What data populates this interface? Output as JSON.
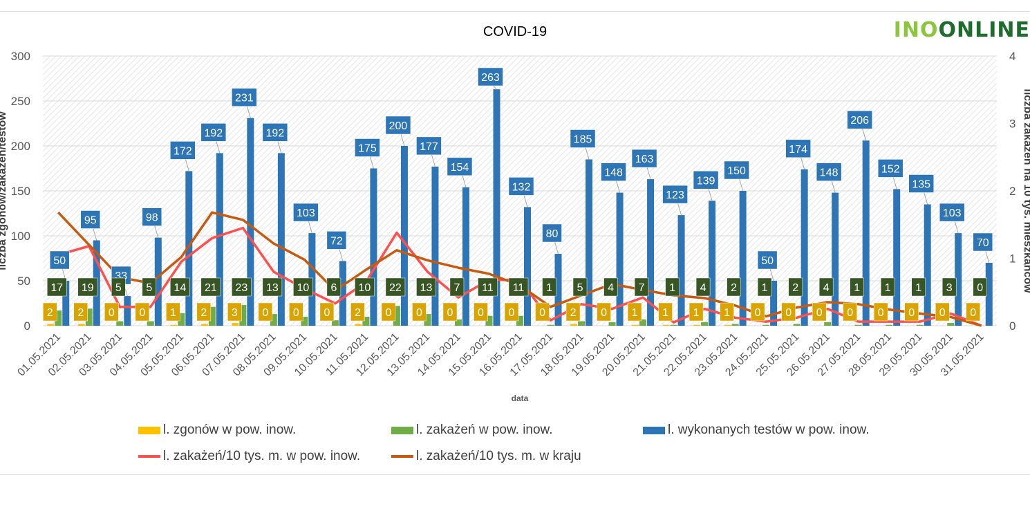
{
  "title": "COVID-19",
  "logo": {
    "part1": "INO",
    "part2": "ONLINE"
  },
  "chart_data": {
    "type": "bar",
    "title": "COVID-19",
    "xlabel": "data",
    "ylabel": "liczba zgonów/zakażeń/testów",
    "y2label": "liczba zakażeń na 10 tys. mieszkańców",
    "ylim": [
      0,
      300
    ],
    "y2lim": [
      0,
      4
    ],
    "yticks": [
      "0",
      "50",
      "100",
      "150",
      "200",
      "250",
      "300"
    ],
    "y2ticks": [
      "0",
      "1",
      "2",
      "3",
      "4"
    ],
    "categories": [
      "01.05.2021",
      "02.05.2021",
      "03.05.2021",
      "04.05.2021",
      "05.05.2021",
      "06.05.2021",
      "07.05.2021",
      "08.05.2021",
      "09.05.2021",
      "10.05.2021",
      "11.05.2021",
      "12.05.2021",
      "13.05.2021",
      "14.05.2021",
      "15.05.2021",
      "16.05.2021",
      "17.05.2021",
      "18.05.2021",
      "19.05.2021",
      "20.05.2021",
      "21.05.2021",
      "22.05.2021",
      "23.05.2021",
      "24.05.2021",
      "25.05.2021",
      "26.05.2021",
      "27.05.2021",
      "28.05.2021",
      "29.05.2021",
      "30.05.2021",
      "31.05.2021"
    ],
    "series": [
      {
        "name": "l. zgonów w pow. inow.",
        "kind": "bar",
        "axis": "left",
        "color": "#ffc000",
        "label_bg": "#d9a400",
        "values": [
          2,
          2,
          0,
          0,
          1,
          2,
          3,
          0,
          0,
          0,
          2,
          0,
          0,
          0,
          0,
          0,
          0,
          2,
          0,
          1,
          1,
          1,
          1,
          0,
          0,
          0,
          0,
          0,
          0,
          0,
          0
        ]
      },
      {
        "name": "l. zakażeń w pow. inow.",
        "kind": "bar",
        "axis": "left",
        "color": "#70ad47",
        "label_bg": "#375623",
        "values": [
          17,
          19,
          5,
          5,
          14,
          21,
          23,
          13,
          10,
          6,
          10,
          22,
          13,
          7,
          11,
          11,
          1,
          5,
          4,
          7,
          1,
          4,
          2,
          1,
          2,
          4,
          1,
          1,
          1,
          3,
          0
        ]
      },
      {
        "name": "l. wykonanych testów w pow. inow.",
        "kind": "bar",
        "axis": "left",
        "color": "#2e75b6",
        "label_bg": "#2e75b6",
        "values": [
          50,
          95,
          33,
          98,
          172,
          192,
          231,
          192,
          103,
          72,
          175,
          200,
          177,
          154,
          263,
          132,
          80,
          185,
          148,
          163,
          123,
          139,
          150,
          50,
          174,
          148,
          206,
          152,
          135,
          103,
          70
        ]
      },
      {
        "name": "l. zakażeń/10 tys. m. w pow. inow.",
        "kind": "line",
        "axis": "right",
        "color": "#ff5050",
        "values": [
          1.05,
          1.18,
          0.28,
          0.28,
          0.95,
          1.3,
          1.45,
          0.8,
          0.55,
          0.33,
          0.65,
          1.38,
          0.8,
          0.42,
          0.68,
          0.68,
          0.08,
          0.32,
          0.25,
          0.42,
          0.05,
          0.25,
          0.12,
          0.06,
          0.12,
          0.25,
          0.06,
          0.06,
          0.06,
          0.18,
          0.0
        ]
      },
      {
        "name": "l. zakażeń/10 tys. m. w kraju",
        "kind": "line",
        "axis": "right",
        "color": "#c55a11",
        "values": [
          1.68,
          1.2,
          0.72,
          0.63,
          1.02,
          1.68,
          1.57,
          1.22,
          0.98,
          0.52,
          0.83,
          1.12,
          0.97,
          0.86,
          0.77,
          0.6,
          0.28,
          0.45,
          0.62,
          0.53,
          0.45,
          0.41,
          0.3,
          0.14,
          0.27,
          0.35,
          0.32,
          0.24,
          0.18,
          0.13,
          0.0
        ]
      }
    ]
  }
}
